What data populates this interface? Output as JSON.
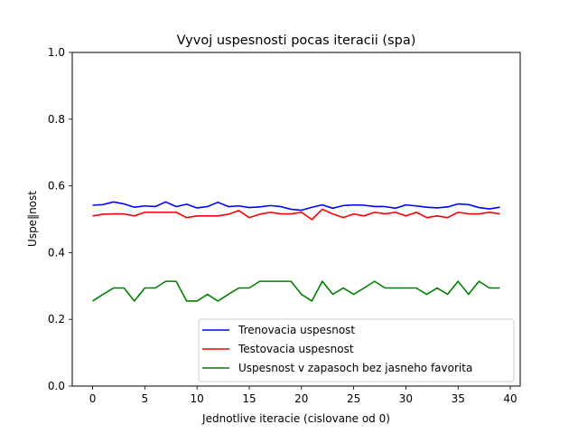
{
  "chart_data": {
    "type": "line",
    "title": "Vyvoj uspesnosti pocas iteracii (spa)",
    "xlabel": "Jednotlive iteracie (cislovane od 0)",
    "ylabel": "Uspe‖nost",
    "xlim": [
      -1.95,
      40.95
    ],
    "ylim": [
      0.0,
      1.0
    ],
    "xticks": [
      0,
      5,
      10,
      15,
      20,
      25,
      30,
      35,
      40
    ],
    "xtick_labels": [
      "0",
      "5",
      "10",
      "15",
      "20",
      "25",
      "30",
      "35",
      "40"
    ],
    "yticks": [
      0.0,
      0.2,
      0.4,
      0.6,
      0.8,
      1.0
    ],
    "ytick_labels": [
      "0.0",
      "0.2",
      "0.4",
      "0.6",
      "0.8",
      "1.0"
    ],
    "grid": false,
    "legend_position": "lower-right",
    "x": [
      0,
      1,
      2,
      3,
      4,
      5,
      6,
      7,
      8,
      9,
      10,
      11,
      12,
      13,
      14,
      15,
      16,
      17,
      18,
      19,
      20,
      21,
      22,
      23,
      24,
      25,
      26,
      27,
      28,
      29,
      30,
      31,
      32,
      33,
      34,
      35,
      36,
      37,
      38,
      39
    ],
    "series": [
      {
        "name": "Trenovacia uspesnost",
        "color": "#0000ff",
        "values": [
          0.542,
          0.544,
          0.552,
          0.546,
          0.536,
          0.54,
          0.538,
          0.552,
          0.538,
          0.545,
          0.534,
          0.538,
          0.551,
          0.538,
          0.54,
          0.535,
          0.537,
          0.541,
          0.538,
          0.53,
          0.527,
          0.536,
          0.543,
          0.533,
          0.541,
          0.543,
          0.542,
          0.538,
          0.538,
          0.533,
          0.543,
          0.54,
          0.536,
          0.534,
          0.537,
          0.546,
          0.544,
          0.535,
          0.531,
          0.536
        ]
      },
      {
        "name": "Testovacia uspesnost",
        "color": "#ff0000",
        "values": [
          0.51,
          0.515,
          0.516,
          0.516,
          0.51,
          0.521,
          0.521,
          0.521,
          0.521,
          0.505,
          0.51,
          0.51,
          0.51,
          0.515,
          0.526,
          0.505,
          0.515,
          0.521,
          0.516,
          0.516,
          0.521,
          0.499,
          0.53,
          0.516,
          0.505,
          0.516,
          0.51,
          0.521,
          0.516,
          0.521,
          0.51,
          0.521,
          0.505,
          0.51,
          0.505,
          0.521,
          0.516,
          0.516,
          0.521,
          0.516
        ]
      },
      {
        "name": "Uspesnost v zapasoch bez jasneho favorita",
        "color": "#008000",
        "values": [
          0.255,
          0.275,
          0.294,
          0.294,
          0.255,
          0.294,
          0.294,
          0.314,
          0.314,
          0.255,
          0.255,
          0.275,
          0.255,
          0.275,
          0.294,
          0.294,
          0.314,
          0.314,
          0.314,
          0.314,
          0.275,
          0.255,
          0.314,
          0.275,
          0.294,
          0.275,
          0.294,
          0.314,
          0.294,
          0.294,
          0.294,
          0.294,
          0.275,
          0.294,
          0.275,
          0.314,
          0.275,
          0.314,
          0.294,
          0.294
        ]
      }
    ]
  }
}
